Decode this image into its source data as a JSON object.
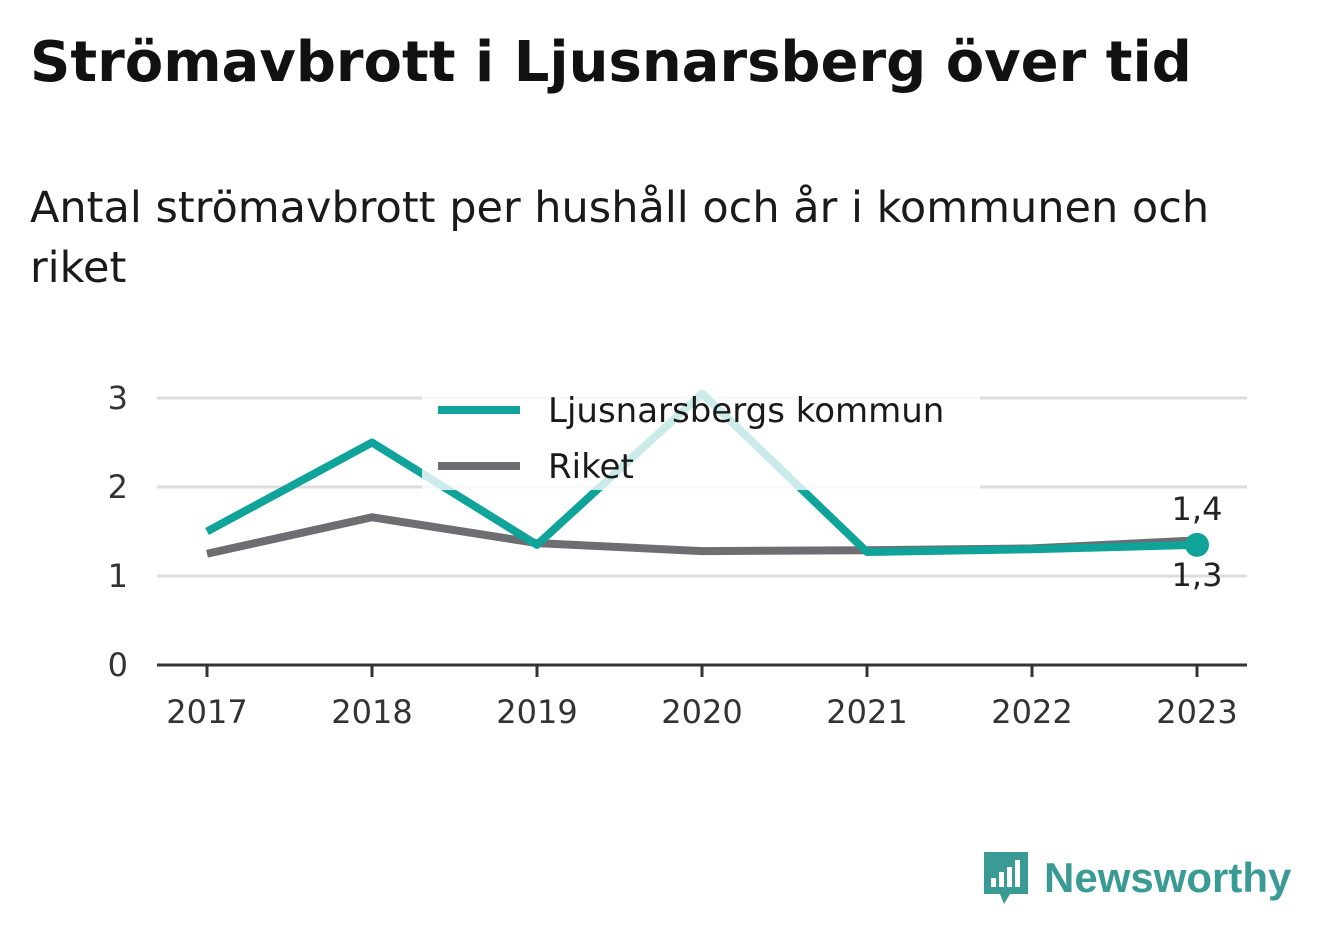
{
  "title": "Strömavbrott i Ljusnarsberg över tid",
  "subtitle": "Antal strömavbrott per hushåll och år i kommunen och riket",
  "brand": {
    "name": "Newsworthy",
    "icon": "newsworthy-logo-icon",
    "color": "#3a9b94"
  },
  "chart_data": {
    "type": "line",
    "x": [
      "2017",
      "2018",
      "2019",
      "2020",
      "2021",
      "2022",
      "2023"
    ],
    "ylim": [
      0,
      3
    ],
    "yticks": [
      "0",
      "1",
      "2",
      "3"
    ],
    "grid": true,
    "legend_position": "top-center",
    "series": [
      {
        "name": "Ljusnarsbergs kommun",
        "color": "#0fa39a",
        "values": [
          1.5,
          2.5,
          1.35,
          3.05,
          1.27,
          1.3,
          1.35
        ]
      },
      {
        "name": "Riket",
        "color": "#6e6e72",
        "values": [
          1.25,
          1.66,
          1.37,
          1.28,
          1.29,
          1.31,
          1.4
        ]
      }
    ],
    "end_labels": [
      "1,4",
      "1,3"
    ]
  }
}
